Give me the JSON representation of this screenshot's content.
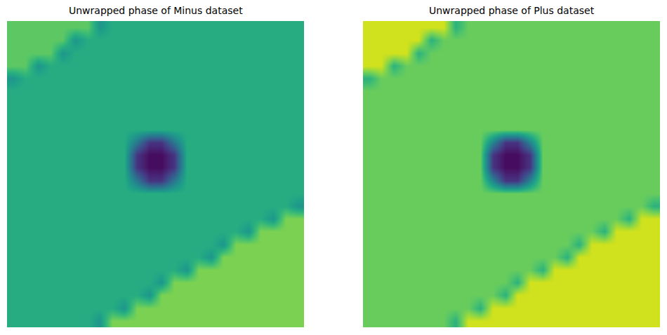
{
  "chart_data": [
    {
      "type": "heatmap",
      "title": "Unwrapped phase of Minus dataset",
      "color": "viridis",
      "tick_labels": false,
      "zlim": [
        0,
        1
      ],
      "rows": [
        [
          0.75,
          0.75,
          0.75,
          0.75,
          0.75,
          0.75,
          0.75,
          0.52,
          0.62,
          0.62,
          0.62,
          0.62,
          0.62,
          0.62,
          0.62,
          0.62,
          0.62,
          0.62,
          0.62,
          0.62,
          0.62,
          0.62,
          0.62,
          0.62
        ],
        [
          0.75,
          0.75,
          0.75,
          0.75,
          0.75,
          0.52,
          0.62,
          0.62,
          0.62,
          0.62,
          0.62,
          0.62,
          0.62,
          0.62,
          0.62,
          0.62,
          0.62,
          0.62,
          0.62,
          0.62,
          0.62,
          0.62,
          0.62,
          0.62
        ],
        [
          0.75,
          0.75,
          0.75,
          0.75,
          0.52,
          0.62,
          0.62,
          0.62,
          0.62,
          0.62,
          0.62,
          0.62,
          0.62,
          0.62,
          0.62,
          0.62,
          0.62,
          0.62,
          0.62,
          0.62,
          0.62,
          0.62,
          0.62,
          0.62
        ],
        [
          0.75,
          0.75,
          0.52,
          0.62,
          0.62,
          0.62,
          0.62,
          0.62,
          0.62,
          0.62,
          0.62,
          0.62,
          0.62,
          0.62,
          0.62,
          0.62,
          0.62,
          0.62,
          0.62,
          0.62,
          0.62,
          0.62,
          0.62,
          0.62
        ],
        [
          0.52,
          0.62,
          0.62,
          0.62,
          0.62,
          0.62,
          0.62,
          0.62,
          0.62,
          0.62,
          0.62,
          0.62,
          0.62,
          0.62,
          0.62,
          0.62,
          0.62,
          0.62,
          0.62,
          0.62,
          0.62,
          0.62,
          0.62,
          0.62
        ],
        [
          0.62,
          0.62,
          0.62,
          0.62,
          0.62,
          0.62,
          0.62,
          0.62,
          0.62,
          0.62,
          0.62,
          0.62,
          0.62,
          0.62,
          0.62,
          0.62,
          0.62,
          0.62,
          0.62,
          0.62,
          0.62,
          0.62,
          0.62,
          0.62
        ],
        [
          0.62,
          0.62,
          0.62,
          0.62,
          0.62,
          0.62,
          0.62,
          0.62,
          0.62,
          0.62,
          0.62,
          0.62,
          0.62,
          0.62,
          0.62,
          0.62,
          0.62,
          0.62,
          0.62,
          0.62,
          0.62,
          0.62,
          0.62,
          0.62
        ],
        [
          0.62,
          0.62,
          0.62,
          0.62,
          0.62,
          0.62,
          0.62,
          0.62,
          0.62,
          0.62,
          0.62,
          0.62,
          0.62,
          0.62,
          0.62,
          0.62,
          0.62,
          0.62,
          0.62,
          0.62,
          0.62,
          0.62,
          0.62,
          0.62
        ],
        [
          0.62,
          0.62,
          0.62,
          0.62,
          0.62,
          0.62,
          0.62,
          0.62,
          0.62,
          0.62,
          0.62,
          0.62,
          0.62,
          0.62,
          0.62,
          0.62,
          0.62,
          0.62,
          0.62,
          0.62,
          0.62,
          0.62,
          0.62,
          0.62
        ],
        [
          0.62,
          0.62,
          0.62,
          0.62,
          0.62,
          0.62,
          0.62,
          0.62,
          0.62,
          0.62,
          0.4,
          0.15,
          0.15,
          0.4,
          0.62,
          0.62,
          0.62,
          0.62,
          0.62,
          0.62,
          0.62,
          0.62,
          0.62,
          0.62
        ],
        [
          0.62,
          0.62,
          0.62,
          0.62,
          0.62,
          0.62,
          0.62,
          0.62,
          0.62,
          0.62,
          0.15,
          0.03,
          0.03,
          0.15,
          0.62,
          0.62,
          0.62,
          0.62,
          0.62,
          0.62,
          0.62,
          0.62,
          0.62,
          0.62
        ],
        [
          0.62,
          0.62,
          0.62,
          0.62,
          0.62,
          0.62,
          0.62,
          0.62,
          0.62,
          0.62,
          0.15,
          0.03,
          0.03,
          0.15,
          0.62,
          0.62,
          0.62,
          0.62,
          0.62,
          0.62,
          0.62,
          0.62,
          0.62,
          0.62
        ],
        [
          0.62,
          0.62,
          0.62,
          0.62,
          0.62,
          0.62,
          0.62,
          0.62,
          0.62,
          0.62,
          0.4,
          0.15,
          0.15,
          0.4,
          0.62,
          0.62,
          0.62,
          0.62,
          0.62,
          0.62,
          0.62,
          0.62,
          0.62,
          0.62
        ],
        [
          0.62,
          0.62,
          0.62,
          0.62,
          0.62,
          0.62,
          0.62,
          0.62,
          0.62,
          0.62,
          0.62,
          0.62,
          0.62,
          0.62,
          0.62,
          0.62,
          0.62,
          0.62,
          0.62,
          0.62,
          0.62,
          0.62,
          0.62,
          0.62
        ],
        [
          0.62,
          0.62,
          0.62,
          0.62,
          0.62,
          0.62,
          0.62,
          0.62,
          0.62,
          0.62,
          0.62,
          0.62,
          0.62,
          0.62,
          0.62,
          0.62,
          0.62,
          0.62,
          0.62,
          0.62,
          0.62,
          0.62,
          0.62,
          0.52
        ],
        [
          0.62,
          0.62,
          0.62,
          0.62,
          0.62,
          0.62,
          0.62,
          0.62,
          0.62,
          0.62,
          0.62,
          0.62,
          0.62,
          0.62,
          0.62,
          0.62,
          0.62,
          0.62,
          0.62,
          0.62,
          0.62,
          0.52,
          0.8,
          0.8
        ],
        [
          0.62,
          0.62,
          0.62,
          0.62,
          0.62,
          0.62,
          0.62,
          0.62,
          0.62,
          0.62,
          0.62,
          0.62,
          0.62,
          0.62,
          0.62,
          0.62,
          0.62,
          0.62,
          0.62,
          0.52,
          0.8,
          0.8,
          0.8,
          0.8
        ],
        [
          0.62,
          0.62,
          0.62,
          0.62,
          0.62,
          0.62,
          0.62,
          0.62,
          0.62,
          0.62,
          0.62,
          0.62,
          0.62,
          0.62,
          0.62,
          0.62,
          0.62,
          0.52,
          0.8,
          0.8,
          0.8,
          0.8,
          0.8,
          0.8
        ],
        [
          0.62,
          0.62,
          0.62,
          0.62,
          0.62,
          0.62,
          0.62,
          0.62,
          0.62,
          0.62,
          0.62,
          0.62,
          0.62,
          0.62,
          0.62,
          0.62,
          0.52,
          0.8,
          0.8,
          0.8,
          0.8,
          0.8,
          0.8,
          0.8
        ],
        [
          0.62,
          0.62,
          0.62,
          0.62,
          0.62,
          0.62,
          0.62,
          0.62,
          0.62,
          0.62,
          0.62,
          0.62,
          0.62,
          0.62,
          0.52,
          0.8,
          0.8,
          0.8,
          0.8,
          0.8,
          0.8,
          0.8,
          0.8,
          0.8
        ],
        [
          0.62,
          0.62,
          0.62,
          0.62,
          0.62,
          0.62,
          0.62,
          0.62,
          0.62,
          0.62,
          0.62,
          0.62,
          0.52,
          0.8,
          0.8,
          0.8,
          0.8,
          0.8,
          0.8,
          0.8,
          0.8,
          0.8,
          0.8,
          0.8
        ],
        [
          0.62,
          0.62,
          0.62,
          0.62,
          0.62,
          0.62,
          0.62,
          0.62,
          0.62,
          0.62,
          0.62,
          0.52,
          0.8,
          0.8,
          0.8,
          0.8,
          0.8,
          0.8,
          0.8,
          0.8,
          0.8,
          0.8,
          0.8,
          0.8
        ],
        [
          0.62,
          0.62,
          0.62,
          0.62,
          0.62,
          0.62,
          0.62,
          0.62,
          0.62,
          0.52,
          0.8,
          0.8,
          0.8,
          0.8,
          0.8,
          0.8,
          0.8,
          0.8,
          0.8,
          0.8,
          0.8,
          0.8,
          0.8,
          0.8
        ],
        [
          0.62,
          0.62,
          0.62,
          0.62,
          0.62,
          0.62,
          0.62,
          0.52,
          0.8,
          0.8,
          0.8,
          0.8,
          0.8,
          0.8,
          0.8,
          0.8,
          0.8,
          0.8,
          0.8,
          0.8,
          0.8,
          0.8,
          0.8,
          0.8
        ]
      ]
    },
    {
      "type": "heatmap",
      "title": "Unwrapped phase of Plus dataset",
      "color": "viridis",
      "tick_labels": false,
      "zlim": [
        0,
        1
      ],
      "rows": [
        [
          0.93,
          0.93,
          0.93,
          0.93,
          0.93,
          0.93,
          0.93,
          0.64,
          0.77,
          0.77,
          0.77,
          0.77,
          0.77,
          0.77,
          0.77,
          0.77,
          0.77,
          0.77,
          0.77,
          0.77,
          0.77,
          0.77,
          0.77,
          0.77
        ],
        [
          0.93,
          0.93,
          0.93,
          0.93,
          0.93,
          0.64,
          0.77,
          0.77,
          0.77,
          0.77,
          0.77,
          0.77,
          0.77,
          0.77,
          0.77,
          0.77,
          0.77,
          0.77,
          0.77,
          0.77,
          0.77,
          0.77,
          0.77,
          0.77
        ],
        [
          0.93,
          0.93,
          0.93,
          0.93,
          0.64,
          0.77,
          0.77,
          0.77,
          0.77,
          0.77,
          0.77,
          0.77,
          0.77,
          0.77,
          0.77,
          0.77,
          0.77,
          0.77,
          0.77,
          0.77,
          0.77,
          0.77,
          0.77,
          0.77
        ],
        [
          0.93,
          0.93,
          0.64,
          0.77,
          0.77,
          0.77,
          0.77,
          0.77,
          0.77,
          0.77,
          0.77,
          0.77,
          0.77,
          0.77,
          0.77,
          0.77,
          0.77,
          0.77,
          0.77,
          0.77,
          0.77,
          0.77,
          0.77,
          0.77
        ],
        [
          0.64,
          0.77,
          0.77,
          0.77,
          0.77,
          0.77,
          0.77,
          0.77,
          0.77,
          0.77,
          0.77,
          0.77,
          0.77,
          0.77,
          0.77,
          0.77,
          0.77,
          0.77,
          0.77,
          0.77,
          0.77,
          0.77,
          0.77,
          0.77
        ],
        [
          0.77,
          0.77,
          0.77,
          0.77,
          0.77,
          0.77,
          0.77,
          0.77,
          0.77,
          0.77,
          0.77,
          0.77,
          0.77,
          0.77,
          0.77,
          0.77,
          0.77,
          0.77,
          0.77,
          0.77,
          0.77,
          0.77,
          0.77,
          0.77
        ],
        [
          0.77,
          0.77,
          0.77,
          0.77,
          0.77,
          0.77,
          0.77,
          0.77,
          0.77,
          0.77,
          0.77,
          0.77,
          0.77,
          0.77,
          0.77,
          0.77,
          0.77,
          0.77,
          0.77,
          0.77,
          0.77,
          0.77,
          0.77,
          0.77
        ],
        [
          0.77,
          0.77,
          0.77,
          0.77,
          0.77,
          0.77,
          0.77,
          0.77,
          0.77,
          0.77,
          0.77,
          0.77,
          0.77,
          0.77,
          0.77,
          0.77,
          0.77,
          0.77,
          0.77,
          0.77,
          0.77,
          0.77,
          0.77,
          0.77
        ],
        [
          0.77,
          0.77,
          0.77,
          0.77,
          0.77,
          0.77,
          0.77,
          0.77,
          0.77,
          0.77,
          0.77,
          0.77,
          0.77,
          0.77,
          0.77,
          0.77,
          0.77,
          0.77,
          0.77,
          0.77,
          0.77,
          0.77,
          0.77,
          0.77
        ],
        [
          0.77,
          0.77,
          0.77,
          0.77,
          0.77,
          0.77,
          0.77,
          0.77,
          0.77,
          0.77,
          0.45,
          0.15,
          0.15,
          0.45,
          0.77,
          0.77,
          0.77,
          0.77,
          0.77,
          0.77,
          0.77,
          0.77,
          0.77,
          0.77
        ],
        [
          0.77,
          0.77,
          0.77,
          0.77,
          0.77,
          0.77,
          0.77,
          0.77,
          0.77,
          0.77,
          0.15,
          0.03,
          0.03,
          0.15,
          0.77,
          0.77,
          0.77,
          0.77,
          0.77,
          0.77,
          0.77,
          0.77,
          0.77,
          0.77
        ],
        [
          0.77,
          0.77,
          0.77,
          0.77,
          0.77,
          0.77,
          0.77,
          0.77,
          0.77,
          0.77,
          0.15,
          0.03,
          0.03,
          0.15,
          0.77,
          0.77,
          0.77,
          0.77,
          0.77,
          0.77,
          0.77,
          0.77,
          0.77,
          0.77
        ],
        [
          0.77,
          0.77,
          0.77,
          0.77,
          0.77,
          0.77,
          0.77,
          0.77,
          0.77,
          0.77,
          0.45,
          0.15,
          0.15,
          0.45,
          0.77,
          0.77,
          0.77,
          0.77,
          0.77,
          0.77,
          0.77,
          0.77,
          0.77,
          0.77
        ],
        [
          0.77,
          0.77,
          0.77,
          0.77,
          0.77,
          0.77,
          0.77,
          0.77,
          0.77,
          0.77,
          0.77,
          0.77,
          0.77,
          0.77,
          0.77,
          0.77,
          0.77,
          0.77,
          0.77,
          0.77,
          0.77,
          0.77,
          0.77,
          0.77
        ],
        [
          0.77,
          0.77,
          0.77,
          0.77,
          0.77,
          0.77,
          0.77,
          0.77,
          0.77,
          0.77,
          0.77,
          0.77,
          0.77,
          0.77,
          0.77,
          0.77,
          0.77,
          0.77,
          0.77,
          0.77,
          0.77,
          0.77,
          0.77,
          0.64
        ],
        [
          0.77,
          0.77,
          0.77,
          0.77,
          0.77,
          0.77,
          0.77,
          0.77,
          0.77,
          0.77,
          0.77,
          0.77,
          0.77,
          0.77,
          0.77,
          0.77,
          0.77,
          0.77,
          0.77,
          0.77,
          0.77,
          0.64,
          0.93,
          0.93
        ],
        [
          0.77,
          0.77,
          0.77,
          0.77,
          0.77,
          0.77,
          0.77,
          0.77,
          0.77,
          0.77,
          0.77,
          0.77,
          0.77,
          0.77,
          0.77,
          0.77,
          0.77,
          0.77,
          0.77,
          0.64,
          0.93,
          0.93,
          0.93,
          0.93
        ],
        [
          0.77,
          0.77,
          0.77,
          0.77,
          0.77,
          0.77,
          0.77,
          0.77,
          0.77,
          0.77,
          0.77,
          0.77,
          0.77,
          0.77,
          0.77,
          0.77,
          0.77,
          0.64,
          0.93,
          0.93,
          0.93,
          0.93,
          0.93,
          0.93
        ],
        [
          0.77,
          0.77,
          0.77,
          0.77,
          0.77,
          0.77,
          0.77,
          0.77,
          0.77,
          0.77,
          0.77,
          0.77,
          0.77,
          0.77,
          0.77,
          0.77,
          0.64,
          0.93,
          0.93,
          0.93,
          0.93,
          0.93,
          0.93,
          0.93
        ],
        [
          0.77,
          0.77,
          0.77,
          0.77,
          0.77,
          0.77,
          0.77,
          0.77,
          0.77,
          0.77,
          0.77,
          0.77,
          0.77,
          0.77,
          0.64,
          0.93,
          0.93,
          0.93,
          0.93,
          0.93,
          0.93,
          0.93,
          0.93,
          0.93
        ],
        [
          0.77,
          0.77,
          0.77,
          0.77,
          0.77,
          0.77,
          0.77,
          0.77,
          0.77,
          0.77,
          0.77,
          0.77,
          0.64,
          0.93,
          0.93,
          0.93,
          0.93,
          0.93,
          0.93,
          0.93,
          0.93,
          0.93,
          0.93,
          0.93
        ],
        [
          0.77,
          0.77,
          0.77,
          0.77,
          0.77,
          0.77,
          0.77,
          0.77,
          0.77,
          0.77,
          0.77,
          0.64,
          0.93,
          0.93,
          0.93,
          0.93,
          0.93,
          0.93,
          0.93,
          0.93,
          0.93,
          0.93,
          0.93,
          0.93
        ],
        [
          0.77,
          0.77,
          0.77,
          0.77,
          0.77,
          0.77,
          0.77,
          0.77,
          0.77,
          0.64,
          0.93,
          0.93,
          0.93,
          0.93,
          0.93,
          0.93,
          0.93,
          0.93,
          0.93,
          0.93,
          0.93,
          0.93,
          0.93,
          0.93
        ],
        [
          0.77,
          0.77,
          0.77,
          0.77,
          0.77,
          0.77,
          0.77,
          0.64,
          0.93,
          0.93,
          0.93,
          0.93,
          0.93,
          0.93,
          0.93,
          0.93,
          0.93,
          0.93,
          0.93,
          0.93,
          0.93,
          0.93,
          0.93,
          0.93
        ]
      ]
    }
  ]
}
